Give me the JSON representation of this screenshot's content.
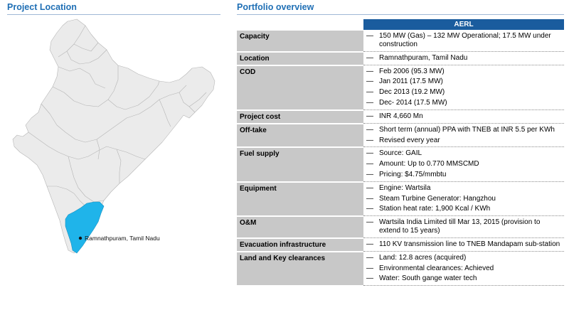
{
  "left": {
    "title": "Project Location",
    "map_label": "Ramnathpuram, Tamil Nadu",
    "colors": {
      "country": "#ebebeb",
      "highlight": "#1fb4ea",
      "border": "#b5b5b5"
    }
  },
  "right": {
    "title": "Portfolio overview",
    "column_header": "AERL",
    "rows": [
      {
        "label": "Capacity",
        "items": [
          "150 MW (Gas) – 132 MW Operational; 17.5 MW under construction"
        ]
      },
      {
        "label": "Location",
        "items": [
          "Ramnathpuram, Tamil Nadu"
        ]
      },
      {
        "label": "COD",
        "items": [
          "Feb 2006 (95.3 MW)",
          "Jan 2011 (17.5 MW)",
          "Dec 2013 (19.2 MW)",
          "Dec- 2014 (17.5 MW)"
        ]
      },
      {
        "label": "Project cost",
        "items": [
          "INR 4,660 Mn"
        ]
      },
      {
        "label": "Off-take",
        "items": [
          "Short term (annual) PPA with TNEB at INR 5.5 per KWh",
          "Revised every year"
        ]
      },
      {
        "label": "Fuel supply",
        "items": [
          "Source: GAIL",
          "Amount: Up to 0.770 MMSCMD",
          "Pricing: $4.75/mmbtu"
        ]
      },
      {
        "label": "Equipment",
        "items": [
          "Engine: Wartsila",
          "Steam Turbine Generator: Hangzhou",
          "Station heat rate: 1,900 Kcal / KWh"
        ]
      },
      {
        "label": "O&M",
        "items": [
          "Wartsila India Limited till Mar 13, 2015 (provision to extend to 15 years)"
        ]
      },
      {
        "label": "Evacuation infrastructure",
        "items": [
          "110 KV transmission line to TNEB Mandapam sub-station"
        ]
      },
      {
        "label": "Land and Key clearances",
        "items": [
          "Land: 12.8 acres (acquired)",
          "Environmental clearances: Achieved",
          "Water: South gange water tech"
        ]
      }
    ],
    "dash_symbol": "—"
  }
}
